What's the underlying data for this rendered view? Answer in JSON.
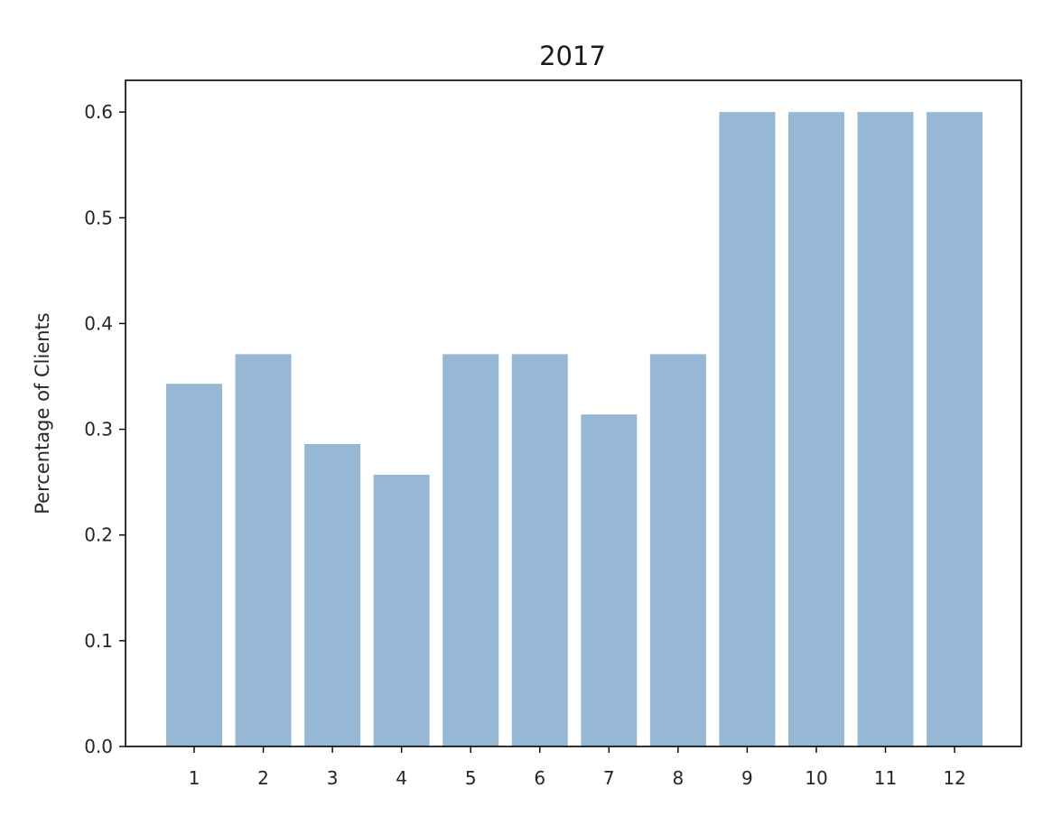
{
  "chart_data": {
    "type": "bar",
    "title": "2017",
    "xlabel": "",
    "ylabel": "Percentage of Clients",
    "categories": [
      "1",
      "2",
      "3",
      "4",
      "5",
      "6",
      "7",
      "8",
      "9",
      "10",
      "11",
      "12"
    ],
    "values": [
      0.343,
      0.371,
      0.286,
      0.257,
      0.371,
      0.371,
      0.314,
      0.371,
      0.6,
      0.6,
      0.6,
      0.6
    ],
    "ylim": [
      0,
      0.63
    ],
    "yticks": [
      "0.0",
      "0.1",
      "0.2",
      "0.3",
      "0.4",
      "0.5",
      "0.6"
    ],
    "grid": false,
    "bar_color": "#96b8d5",
    "axis_color": "#000000"
  }
}
